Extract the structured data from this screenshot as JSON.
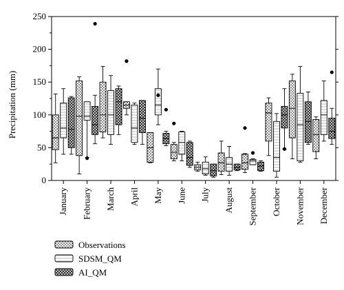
{
  "chart_data": {
    "type": "boxplot",
    "ylabel": "Precipitation (mm)",
    "xlabel": "",
    "ylim": [
      0,
      250
    ],
    "yticks": [
      0,
      50,
      100,
      150,
      200,
      250
    ],
    "categories": [
      "January",
      "February",
      "March",
      "April",
      "May",
      "June",
      "July",
      "August",
      "September",
      "October",
      "November",
      "December"
    ],
    "legend_position": "bottom-left",
    "series": [
      {
        "name": "Observations",
        "pattern": "dots",
        "boxes": [
          {
            "whislo": 27,
            "q1": 47,
            "med": 65,
            "q3": 100,
            "whishi": 132,
            "fliers": []
          },
          {
            "whislo": 10,
            "q1": 38,
            "med": 98,
            "q3": 152,
            "whishi": 158,
            "fliers": []
          },
          {
            "whislo": 65,
            "q1": 74,
            "med": 100,
            "q3": 150,
            "whishi": 174,
            "fliers": []
          },
          {
            "whislo": 100,
            "q1": 110,
            "med": 115,
            "q3": 120,
            "whishi": 120,
            "fliers": [
              182
            ]
          },
          {
            "whislo": 27,
            "q1": 28,
            "med": 50,
            "q3": 73,
            "whishi": 73,
            "fliers": []
          },
          {
            "whislo": 30,
            "q1": 33,
            "med": 43,
            "q3": 55,
            "whishi": 58,
            "fliers": [
              87
            ]
          },
          {
            "whislo": 14,
            "q1": 16,
            "med": 20,
            "q3": 24,
            "whishi": 28,
            "fliers": []
          },
          {
            "whislo": 9,
            "q1": 14,
            "med": 27,
            "q3": 42,
            "whishi": 60,
            "fliers": []
          },
          {
            "whislo": 12,
            "q1": 17,
            "med": 27,
            "q3": 40,
            "whishi": 41,
            "fliers": [
              80
            ]
          },
          {
            "whislo": 38,
            "q1": 60,
            "med": 103,
            "q3": 118,
            "whishi": 126,
            "fliers": []
          },
          {
            "whislo": 33,
            "q1": 65,
            "med": 110,
            "q3": 152,
            "whishi": 162,
            "fliers": []
          },
          {
            "whislo": 33,
            "q1": 44,
            "med": 70,
            "q3": 93,
            "whishi": 97,
            "fliers": []
          }
        ]
      },
      {
        "name": "SDSM_QM",
        "pattern": "hlines",
        "boxes": [
          {
            "whislo": 40,
            "q1": 65,
            "med": 80,
            "q3": 118,
            "whishi": 140,
            "fliers": []
          },
          {
            "whislo": 35,
            "q1": 92,
            "med": 98,
            "q3": 120,
            "whishi": 120,
            "fliers": [
              34
            ]
          },
          {
            "whislo": 55,
            "q1": 70,
            "med": 100,
            "q3": 137,
            "whishi": 160,
            "fliers": []
          },
          {
            "whislo": 55,
            "q1": 58,
            "med": 80,
            "q3": 115,
            "whishi": 118,
            "fliers": []
          },
          {
            "whislo": 85,
            "q1": 100,
            "med": 115,
            "q3": 140,
            "whishi": 170,
            "fliers": [
              130
            ]
          },
          {
            "whislo": 30,
            "q1": 40,
            "med": 58,
            "q3": 74,
            "whishi": 75,
            "fliers": []
          },
          {
            "whislo": 8,
            "q1": 10,
            "med": 18,
            "q3": 28,
            "whishi": 36,
            "fliers": []
          },
          {
            "whislo": 8,
            "q1": 14,
            "med": 25,
            "q3": 35,
            "whishi": 52,
            "fliers": []
          },
          {
            "whislo": 24,
            "q1": 24,
            "med": 30,
            "q3": 32,
            "whishi": 33,
            "fliers": [
              42
            ]
          },
          {
            "whislo": 5,
            "q1": 14,
            "med": 35,
            "q3": 90,
            "whishi": 102,
            "fliers": []
          },
          {
            "whislo": 28,
            "q1": 30,
            "med": 85,
            "q3": 133,
            "whishi": 174,
            "fliers": []
          },
          {
            "whislo": 60,
            "q1": 70,
            "med": 100,
            "q3": 122,
            "whishi": 152,
            "fliers": []
          }
        ]
      },
      {
        "name": "AI_QM",
        "pattern": "crosshatch",
        "boxes": [
          {
            "whislo": 40,
            "q1": 50,
            "med": 78,
            "q3": 126,
            "whishi": 128,
            "fliers": []
          },
          {
            "whislo": 56,
            "q1": 70,
            "med": 85,
            "q3": 113,
            "whishi": 130,
            "fliers": [
              239
            ]
          },
          {
            "whislo": 70,
            "q1": 85,
            "med": 120,
            "q3": 140,
            "whishi": 144,
            "fliers": []
          },
          {
            "whislo": 55,
            "q1": 73,
            "med": 95,
            "q3": 122,
            "whishi": 122,
            "fliers": []
          },
          {
            "whislo": 53,
            "q1": 56,
            "med": 64,
            "q3": 72,
            "whishi": 75,
            "fliers": [
              108
            ]
          },
          {
            "whislo": 20,
            "q1": 23,
            "med": 35,
            "q3": 58,
            "whishi": 60,
            "fliers": []
          },
          {
            "whislo": 5,
            "q1": 7,
            "med": 15,
            "q3": 25,
            "whishi": 25,
            "fliers": []
          },
          {
            "whislo": 15,
            "q1": 16,
            "med": 20,
            "q3": 25,
            "whishi": 25,
            "fliers": []
          },
          {
            "whislo": 14,
            "q1": 15,
            "med": 22,
            "q3": 28,
            "whishi": 30,
            "fliers": []
          },
          {
            "whislo": 48,
            "q1": 80,
            "med": 100,
            "q3": 113,
            "whishi": 140,
            "fliers": [
              48
            ]
          },
          {
            "whislo": 55,
            "q1": 58,
            "med": 90,
            "q3": 120,
            "whishi": 135,
            "fliers": []
          },
          {
            "whislo": 55,
            "q1": 64,
            "med": 75,
            "q3": 95,
            "whishi": 110,
            "fliers": [
              165
            ]
          }
        ]
      }
    ]
  }
}
